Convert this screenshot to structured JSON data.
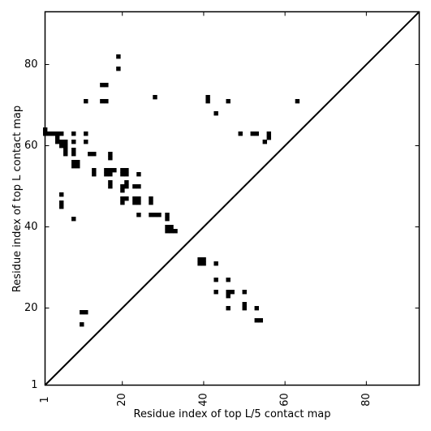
{
  "chart_data": {
    "type": "scatter",
    "xlabel": "Residue index of top L/5 contact map",
    "ylabel": "Residue index of top L contact map",
    "xlim": [
      1,
      93
    ],
    "ylim": [
      1,
      93
    ],
    "x_ticks": [
      1,
      20,
      40,
      60,
      80
    ],
    "x_tick_labels": [
      "1",
      "20",
      "40",
      "60",
      "80"
    ],
    "y_ticks": [
      1,
      20,
      40,
      60,
      80
    ],
    "y_tick_labels": [
      "1",
      "20",
      "40",
      "60",
      "80"
    ],
    "grid": false,
    "diagonal_line": {
      "from": [
        1,
        1
      ],
      "to": [
        93,
        93
      ]
    },
    "series": [
      {
        "points": [
          [
            1,
            64
          ],
          [
            1,
            63
          ],
          [
            2,
            63
          ],
          [
            3,
            63
          ],
          [
            4,
            62
          ],
          [
            4,
            63
          ],
          [
            5,
            63
          ],
          [
            4,
            61
          ],
          [
            5,
            61
          ],
          [
            5,
            60
          ],
          [
            6,
            61
          ],
          [
            6,
            60
          ],
          [
            6,
            59
          ],
          [
            6,
            58
          ],
          [
            5,
            48
          ],
          [
            5,
            46
          ],
          [
            5,
            45
          ],
          [
            8,
            63
          ],
          [
            8,
            61
          ],
          [
            8,
            59
          ],
          [
            8,
            58
          ],
          [
            8,
            56
          ],
          [
            9,
            56
          ],
          [
            8,
            55
          ],
          [
            9,
            55
          ],
          [
            8,
            42
          ],
          [
            11,
            71
          ],
          [
            11,
            63
          ],
          [
            11,
            61
          ],
          [
            12,
            58
          ],
          [
            13,
            58
          ],
          [
            13,
            54
          ],
          [
            13,
            53
          ],
          [
            10,
            19
          ],
          [
            11,
            19
          ],
          [
            10,
            16
          ],
          [
            15,
            75
          ],
          [
            16,
            75
          ],
          [
            15,
            71
          ],
          [
            16,
            71
          ],
          [
            17,
            58
          ],
          [
            17,
            57
          ],
          [
            16,
            54
          ],
          [
            17,
            54
          ],
          [
            18,
            54
          ],
          [
            16,
            53
          ],
          [
            17,
            53
          ],
          [
            17,
            51
          ],
          [
            17,
            50
          ],
          [
            19,
            82
          ],
          [
            19,
            79
          ],
          [
            20,
            54
          ],
          [
            21,
            54
          ],
          [
            20,
            53
          ],
          [
            21,
            53
          ],
          [
            21,
            51
          ],
          [
            21,
            50
          ],
          [
            20,
            50
          ],
          [
            20,
            49
          ],
          [
            20,
            47
          ],
          [
            21,
            47
          ],
          [
            20,
            46
          ],
          [
            23,
            50
          ],
          [
            24,
            50
          ],
          [
            23,
            47
          ],
          [
            24,
            47
          ],
          [
            23,
            46
          ],
          [
            24,
            46
          ],
          [
            24,
            53
          ],
          [
            24,
            43
          ],
          [
            27,
            47
          ],
          [
            27,
            46
          ],
          [
            27,
            43
          ],
          [
            28,
            43
          ],
          [
            29,
            43
          ],
          [
            28,
            72
          ],
          [
            31,
            43
          ],
          [
            31,
            42
          ],
          [
            31,
            40
          ],
          [
            32,
            40
          ],
          [
            31,
            39
          ],
          [
            32,
            39
          ],
          [
            33,
            39
          ],
          [
            39,
            32
          ],
          [
            40,
            32
          ],
          [
            39,
            31
          ],
          [
            40,
            31
          ],
          [
            41,
            72
          ],
          [
            41,
            71
          ],
          [
            43,
            68
          ],
          [
            43,
            31
          ],
          [
            43,
            27
          ],
          [
            43,
            24
          ],
          [
            46,
            71
          ],
          [
            46,
            27
          ],
          [
            46,
            24
          ],
          [
            47,
            24
          ],
          [
            46,
            23
          ],
          [
            46,
            20
          ],
          [
            49,
            63
          ],
          [
            50,
            24
          ],
          [
            50,
            21
          ],
          [
            50,
            20
          ],
          [
            52,
            63
          ],
          [
            53,
            63
          ],
          [
            53,
            20
          ],
          [
            53,
            17
          ],
          [
            54,
            17
          ],
          [
            55,
            61
          ],
          [
            56,
            63
          ],
          [
            56,
            62
          ],
          [
            63,
            71
          ]
        ]
      }
    ]
  }
}
